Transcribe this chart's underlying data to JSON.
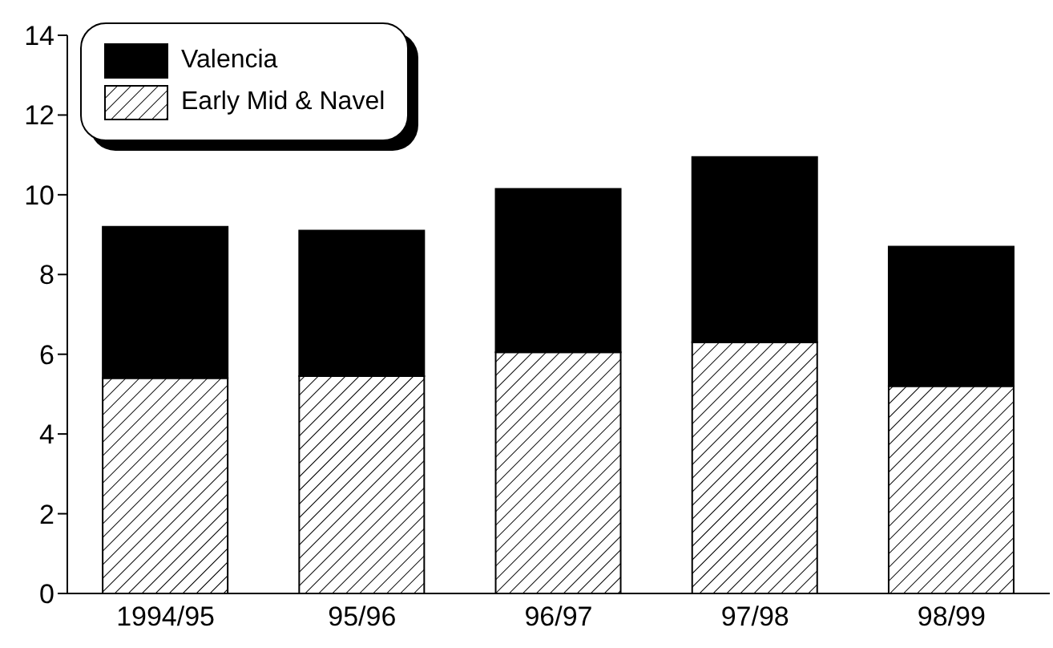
{
  "chart_data": {
    "type": "bar",
    "stacked": true,
    "categories": [
      "1994/95",
      "95/96",
      "96/97",
      "97/98",
      "98/99"
    ],
    "series": [
      {
        "name": "Early Mid & Navel",
        "color": "#000000",
        "values": [
          5.4,
          5.45,
          6.05,
          6.3,
          5.2
        ]
      },
      {
        "name": "Valencia",
        "color": "#000000",
        "values": [
          3.8,
          3.65,
          4.1,
          4.65,
          3.5
        ]
      }
    ],
    "ylim": [
      0,
      14
    ],
    "yticks": [
      0,
      2,
      4,
      6,
      8,
      10,
      12,
      14
    ],
    "grid": false,
    "legend": "top left"
  }
}
